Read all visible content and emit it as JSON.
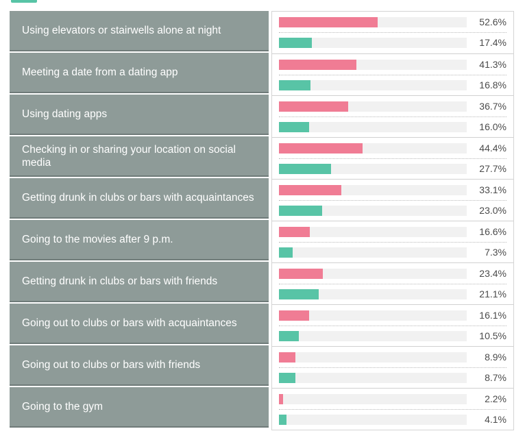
{
  "colors": {
    "series_a": "#f07c94",
    "series_b": "#58c4a6",
    "label_bg": "#8e9b98"
  },
  "chart_data": {
    "type": "bar",
    "orientation": "horizontal",
    "grid": false,
    "xlim": [
      0,
      100
    ],
    "categories": [
      "Using elevators or stairwells alone at night",
      "Meeting a date from a dating app",
      "Using dating apps",
      "Checking in or sharing your location on social media",
      "Getting drunk in clubs or bars with acquaintances",
      "Going to the movies after 9 p.m.",
      "Getting drunk in clubs or bars with friends",
      "Going out to clubs or bars with acquaintances",
      "Going out to clubs or bars with friends",
      "Going to the gym"
    ],
    "series": [
      {
        "values": [
          52.6,
          41.3,
          36.7,
          44.4,
          33.1,
          16.6,
          23.4,
          16.1,
          8.9,
          2.2
        ],
        "labels": [
          "52.6%",
          "41.3%",
          "36.7%",
          "44.4%",
          "33.1%",
          "16.6%",
          "23.4%",
          "16.1%",
          "8.9%",
          "2.2%"
        ]
      },
      {
        "values": [
          17.4,
          16.8,
          16.0,
          27.7,
          23.0,
          7.3,
          21.1,
          10.5,
          8.7,
          4.1
        ],
        "labels": [
          "17.4%",
          "16.8%",
          "16.0%",
          "27.7%",
          "23.0%",
          "7.3%",
          "21.1%",
          "10.5%",
          "8.7%",
          "4.1%"
        ]
      }
    ]
  }
}
